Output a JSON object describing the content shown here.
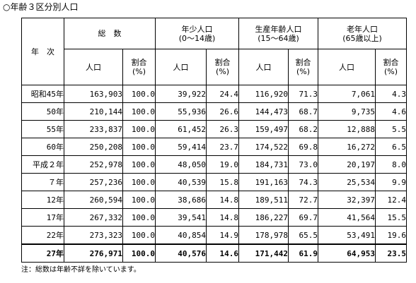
{
  "caption": "○年齢３区分別人口",
  "note": "注：総数は年齢不詳を除いています。",
  "headers": {
    "year": "年　次",
    "total": "総　数",
    "young_1": "年少人口",
    "young_2": "(0～14歳)",
    "working_1": "生産年齢人口",
    "working_2": "(15～64歳)",
    "elderly_1": "老年人口",
    "elderly_2": "(65歳以上)",
    "population": "人口",
    "ratio_1": "割合",
    "ratio_2": "(%)"
  },
  "rows": [
    {
      "year": "昭和45年",
      "total": "163,903",
      "total_pct": "100.0",
      "young": "39,922",
      "young_pct": "24.4",
      "working": "116,920",
      "working_pct": "71.3",
      "elderly": "7,061",
      "elderly_pct": "4.3"
    },
    {
      "year": "50年",
      "total": "210,144",
      "total_pct": "100.0",
      "young": "55,936",
      "young_pct": "26.6",
      "working": "144,473",
      "working_pct": "68.7",
      "elderly": "9,735",
      "elderly_pct": "4.6"
    },
    {
      "year": "55年",
      "total": "233,837",
      "total_pct": "100.0",
      "young": "61,452",
      "young_pct": "26.3",
      "working": "159,497",
      "working_pct": "68.2",
      "elderly": "12,888",
      "elderly_pct": "5.5"
    },
    {
      "year": "60年",
      "total": "250,208",
      "total_pct": "100.0",
      "young": "59,414",
      "young_pct": "23.7",
      "working": "174,522",
      "working_pct": "69.8",
      "elderly": "16,272",
      "elderly_pct": "6.5"
    },
    {
      "year": "平成２年",
      "total": "252,978",
      "total_pct": "100.0",
      "young": "48,050",
      "young_pct": "19.0",
      "working": "184,731",
      "working_pct": "73.0",
      "elderly": "20,197",
      "elderly_pct": "8.0"
    },
    {
      "year": "７年",
      "total": "257,236",
      "total_pct": "100.0",
      "young": "40,539",
      "young_pct": "15.8",
      "working": "191,163",
      "working_pct": "74.3",
      "elderly": "25,534",
      "elderly_pct": "9.9"
    },
    {
      "year": "12年",
      "total": "260,594",
      "total_pct": "100.0",
      "young": "38,686",
      "young_pct": "14.8",
      "working": "189,511",
      "working_pct": "72.7",
      "elderly": "32,397",
      "elderly_pct": "12.4"
    },
    {
      "year": "17年",
      "total": "267,332",
      "total_pct": "100.0",
      "young": "39,541",
      "young_pct": "14.8",
      "working": "186,227",
      "working_pct": "69.7",
      "elderly": "41,564",
      "elderly_pct": "15.5"
    },
    {
      "year": "22年",
      "total": "273,323",
      "total_pct": "100.0",
      "young": "40,854",
      "young_pct": "14.9",
      "working": "178,978",
      "working_pct": "65.5",
      "elderly": "53,491",
      "elderly_pct": "19.6"
    },
    {
      "year": "27年",
      "total": "276,971",
      "total_pct": "100.0",
      "young": "40,576",
      "young_pct": "14.6",
      "working": "171,442",
      "working_pct": "61.9",
      "elderly": "64,953",
      "elderly_pct": "23.5"
    }
  ]
}
